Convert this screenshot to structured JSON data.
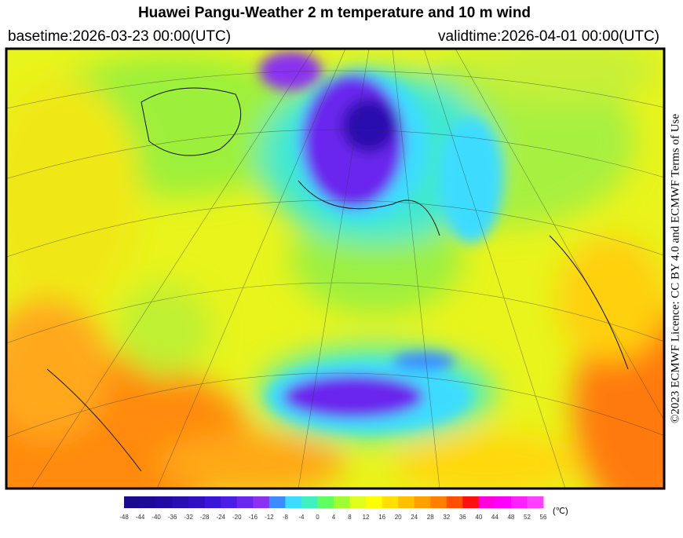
{
  "header": {
    "title": "Huawei Pangu-Weather  2 m temperature and 10 m wind",
    "basetime": "basetime:2026-03-23 00:00(UTC)",
    "validtime": "validtime:2026-04-01 00:00(UTC)"
  },
  "licence": "©2023 ECMWF Licence: CC BY 4.0 and ECMWF  Terms of Use",
  "colorbar": {
    "unit": "(℃)",
    "ticks": [
      -48,
      -44,
      -40,
      -36,
      -32,
      -28,
      -24,
      -20,
      -16,
      -12,
      -8,
      -4,
      0,
      4,
      8,
      12,
      16,
      20,
      24,
      28,
      32,
      36,
      40,
      44,
      48,
      52,
      56
    ],
    "colors": [
      "#1a0a8c",
      "#1e0a96",
      "#230aa0",
      "#2a0faf",
      "#3010c0",
      "#3a14d8",
      "#4a1ee8",
      "#6a28ee",
      "#8a32f0",
      "#3c8cff",
      "#3cdcff",
      "#40f0c0",
      "#60ff60",
      "#a0ff30",
      "#e0ff20",
      "#ffff00",
      "#ffe000",
      "#ffc000",
      "#ffa000",
      "#ff8000",
      "#ff5000",
      "#ff1010",
      "#ff00e0",
      "#ff00ff",
      "#ff20ff",
      "#ff40ff"
    ]
  }
}
